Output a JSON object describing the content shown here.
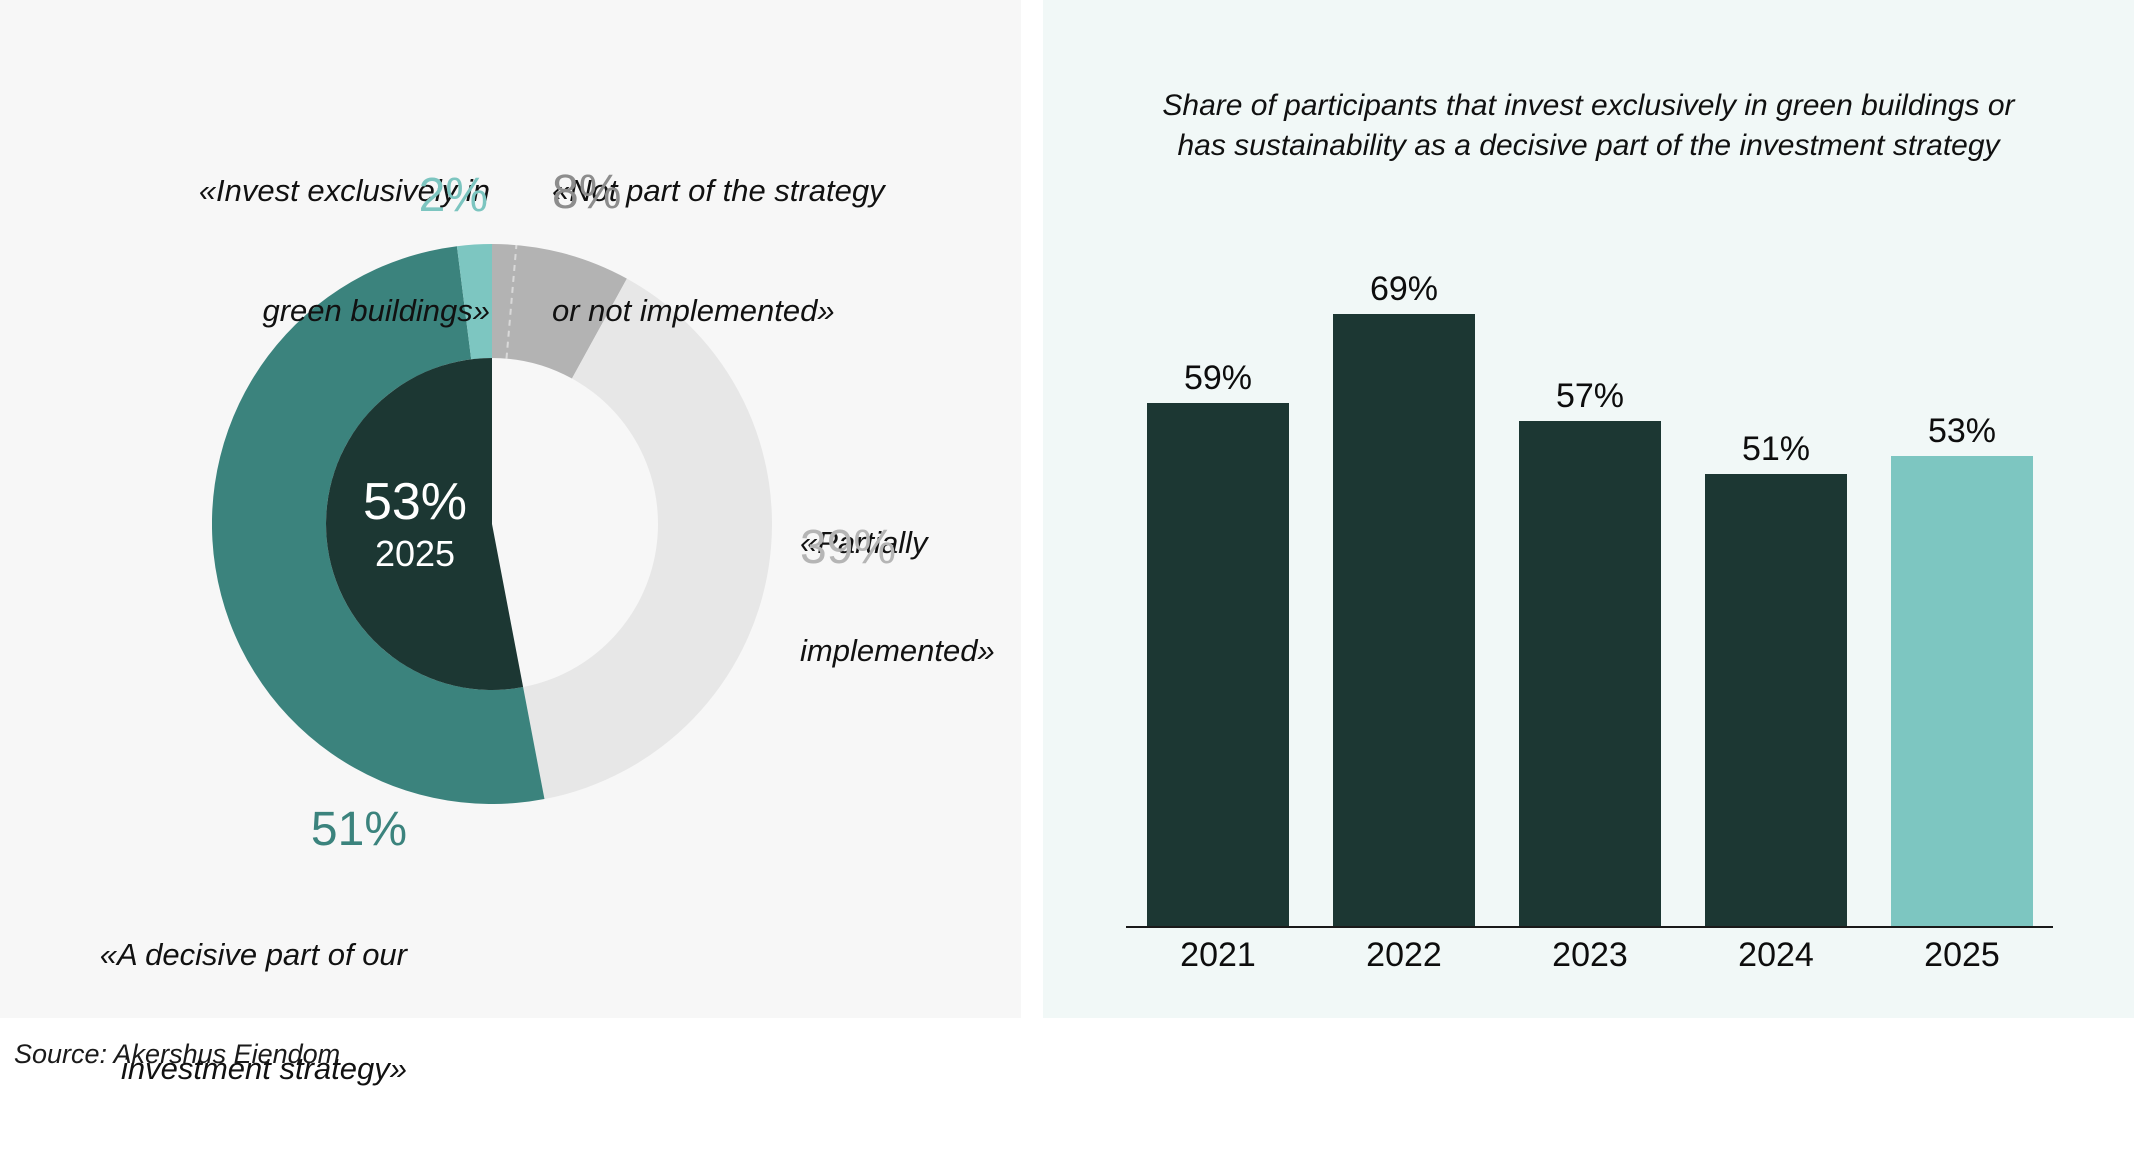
{
  "page": {
    "source_note": "Source: Akershus Eiendom"
  },
  "colors": {
    "left_panel_bg": "#f7f7f7",
    "right_panel_bg": "#f1f8f7",
    "dark_teal": "#1c3733",
    "teal": "#3b837d",
    "light_teal": "#7dc6c1",
    "gray": "#b3b3b3",
    "light_gray": "#e7e7e7",
    "white": "#ffffff"
  },
  "chart_data": [
    {
      "type": "pie",
      "subtype": "donut",
      "center_label": {
        "value": "53%",
        "year": "2025"
      },
      "slices": [
        {
          "label": "«Not part of the strategy or not implemented»",
          "value": 8,
          "color": "#b3b3b3"
        },
        {
          "label": "«Partially implemented»",
          "value": 39,
          "color": "#e7e7e7"
        },
        {
          "label": "«A decisive part of our investment strategy»",
          "value": 51,
          "color": "#3b837d"
        },
        {
          "label": "«Invest exclusively in green buildings»",
          "value": 2,
          "color": "#7dc6c1"
        }
      ],
      "center_wedge": {
        "from_pct": 47,
        "to_pct": 100,
        "color": "#1c3733"
      },
      "divider_deg": 5,
      "annotations": {
        "invest": {
          "lines": [
            "«Invest exclusively in",
            "green buildings»"
          ],
          "pct": "2%",
          "pct_color": "#7cc5c0"
        },
        "not_part": {
          "lines": [
            "«Not part of the strategy",
            "or not implemented»"
          ],
          "pct": "8%",
          "pct_color": "#8d8d8d"
        },
        "partially": {
          "lines": [
            "«Partially",
            "implemented»"
          ],
          "pct": "39%",
          "pct_color": "#b5b5b5"
        },
        "decisive": {
          "pct": "51%",
          "pct_color": "#3b837d",
          "lines": [
            "«A decisive part of our",
            "investment strategy»"
          ]
        }
      }
    },
    {
      "type": "bar",
      "title_lines": [
        "Share of participants that invest exclusively in green buildings or",
        "has sustainability as a decisive part of the investment strategy"
      ],
      "categories": [
        "2021",
        "2022",
        "2023",
        "2024",
        "2025"
      ],
      "values": [
        59,
        69,
        57,
        51,
        53
      ],
      "value_labels": [
        "59%",
        "69%",
        "57%",
        "51%",
        "53%"
      ],
      "bar_color": "#1c3733",
      "highlight_index": 4,
      "highlight_color": "#7dc6c1",
      "ylim": [
        0,
        100
      ],
      "grid": false,
      "legend": false
    }
  ]
}
